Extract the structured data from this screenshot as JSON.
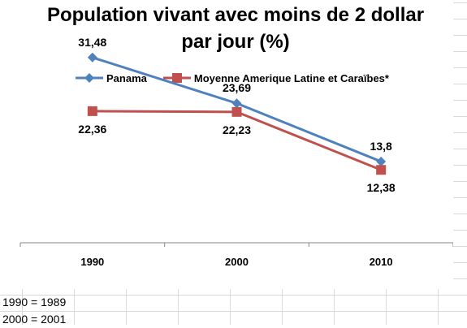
{
  "chart_data": {
    "type": "line",
    "title": "Population vivant avec moins de 2 dollar par jour (%)",
    "categories": [
      "1990",
      "2000",
      "2010"
    ],
    "ylim": [
      0,
      40
    ],
    "grid": false,
    "legend_position": "top",
    "series": [
      {
        "name": "Panama",
        "values": [
          31.48,
          23.69,
          13.8
        ],
        "labels": [
          "31,48",
          "23,69",
          "13,8"
        ],
        "color": "#4f81bd",
        "marker": "diamond"
      },
      {
        "name": "Moyenne Amerique Latine et Caraïbes*",
        "values": [
          22.36,
          22.23,
          12.38
        ],
        "labels": [
          "22,36",
          "22,23",
          "12,38"
        ],
        "color": "#c0504d",
        "marker": "square"
      }
    ]
  },
  "notes": [
    "1990 = 1989",
    "2000 = 2001"
  ]
}
